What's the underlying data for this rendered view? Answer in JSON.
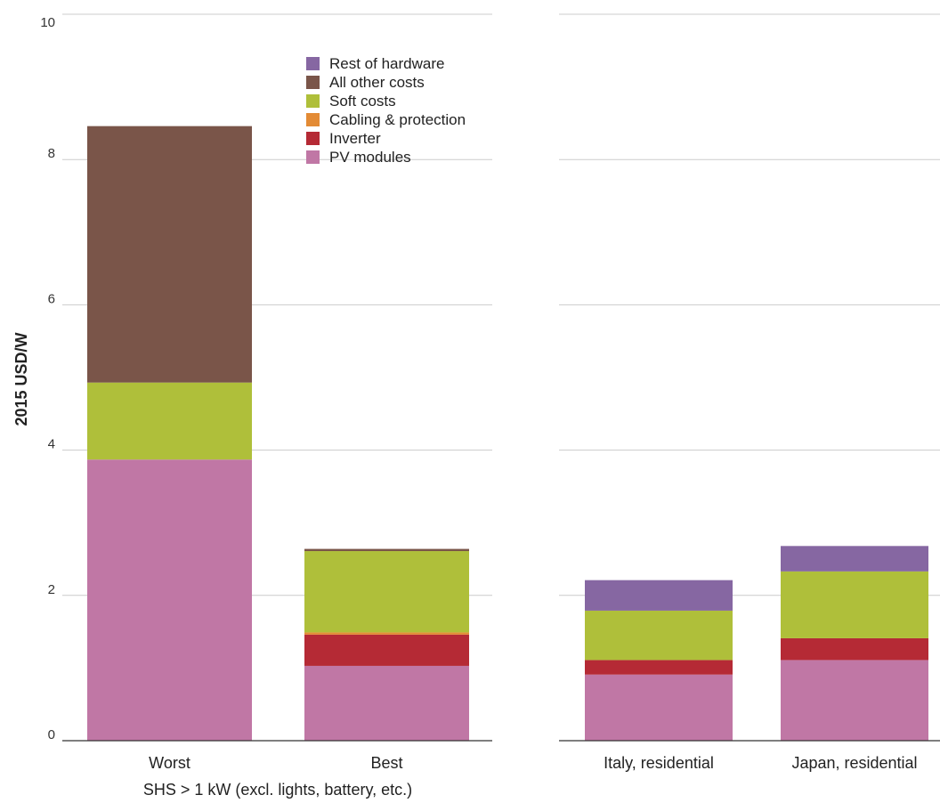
{
  "chart_data": {
    "type": "bar",
    "stacked": true,
    "ylabel": "2015 USD/W",
    "ylim": [
      0,
      10
    ],
    "yticks": [
      0,
      2,
      4,
      6,
      8,
      10
    ],
    "grid": true,
    "legend_position": "top-right of left panel",
    "group_label": "SHS > 1 kW (excl. lights, battery, etc.)",
    "categories": [
      "Worst",
      "Best",
      "Italy, residential",
      "Japan, residential"
    ],
    "series": [
      {
        "name": "PV modules",
        "color": "#c077a5",
        "values": [
          3.87,
          1.03,
          0.91,
          1.11
        ]
      },
      {
        "name": "Inverter",
        "color": "#b52a35",
        "values": [
          0,
          0.43,
          0.2,
          0.3
        ]
      },
      {
        "name": "Cabling & protection",
        "color": "#e38b35",
        "values": [
          0,
          0.03,
          0,
          0
        ]
      },
      {
        "name": "Soft costs",
        "color": "#afbf3a",
        "values": [
          1.06,
          1.12,
          0.68,
          0.92
        ]
      },
      {
        "name": "All other costs",
        "color": "#7a5549",
        "values": [
          3.53,
          0.03,
          0,
          0
        ]
      },
      {
        "name": "Rest of hardware",
        "color": "#8667a2",
        "values": [
          0,
          0,
          0.42,
          0.35
        ]
      }
    ],
    "legend_order": [
      "Rest of hardware",
      "All other costs",
      "Soft costs",
      "Cabling & protection",
      "Inverter",
      "PV modules"
    ]
  }
}
